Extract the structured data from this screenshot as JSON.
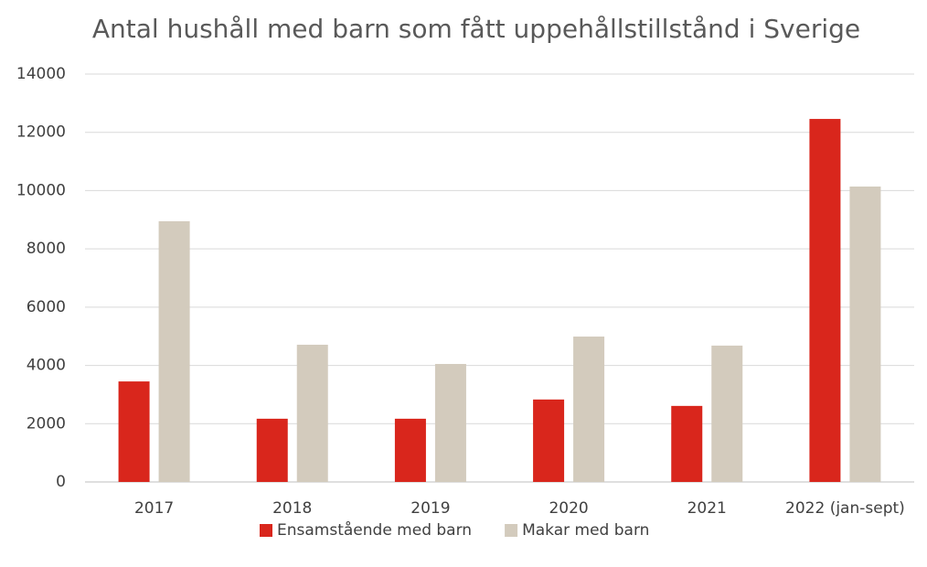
{
  "chart_data": {
    "type": "bar",
    "title": "Antal hushåll med barn som fått uppehållstillstånd i Sverige",
    "categories": [
      "2017",
      "2018",
      "2019",
      "2020",
      "2021",
      "2022 (jan-sept)"
    ],
    "series": [
      {
        "name": "Ensamstående med barn",
        "color": "#d9261c",
        "values": [
          3450,
          2170,
          2170,
          2830,
          2610,
          12460
        ]
      },
      {
        "name": "Makar med barn",
        "color": "#d3cbbd",
        "values": [
          8950,
          4710,
          4050,
          4990,
          4680,
          10140
        ]
      }
    ],
    "ylim": [
      0,
      14000
    ],
    "yticks": [
      0,
      2000,
      4000,
      6000,
      8000,
      10000,
      12000,
      14000
    ],
    "grid": true,
    "legend": "bottom"
  }
}
